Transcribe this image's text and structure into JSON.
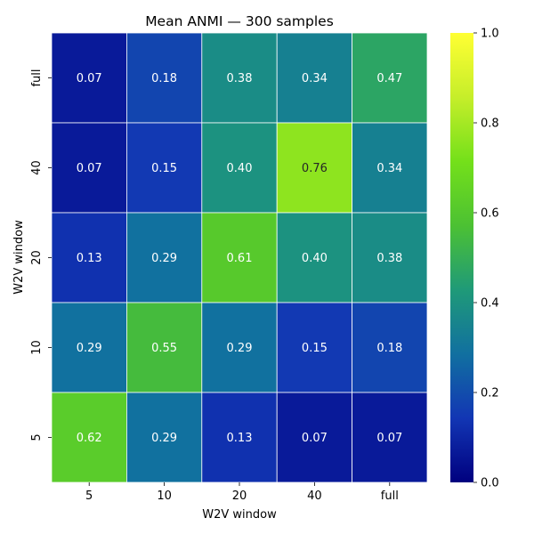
{
  "chart_data": {
    "type": "heatmap",
    "title": "Mean ANMI — 300 samples",
    "xlabel": "W2V window",
    "ylabel": "W2V window",
    "x_categories": [
      "5",
      "10",
      "20",
      "40",
      "full"
    ],
    "y_categories": [
      "full",
      "40",
      "20",
      "10",
      "5"
    ],
    "values": [
      [
        0.07,
        0.18,
        0.38,
        0.34,
        0.47
      ],
      [
        0.07,
        0.15,
        0.4,
        0.76,
        0.34
      ],
      [
        0.13,
        0.29,
        0.61,
        0.4,
        0.38
      ],
      [
        0.29,
        0.55,
        0.29,
        0.15,
        0.18
      ],
      [
        0.62,
        0.29,
        0.13,
        0.07,
        0.07
      ]
    ],
    "value_format": "0.00",
    "colormap": "gist_earth-like (navy → blue → teal → green → yellow)",
    "color_stops": [
      "#00007f",
      "#1236b4",
      "#1170a0",
      "#1f9a78",
      "#4cc133",
      "#74e01a",
      "#c6ee2a",
      "#ffff33"
    ],
    "vmin": 0.0,
    "vmax": 1.0,
    "colorbar_ticks": [
      "0.0",
      "0.2",
      "0.4",
      "0.6",
      "0.8",
      "1.0"
    ],
    "annotation_color_light": "#ffffff",
    "annotation_color_dark": "#262626",
    "grid_line_color": "#ffffff"
  }
}
